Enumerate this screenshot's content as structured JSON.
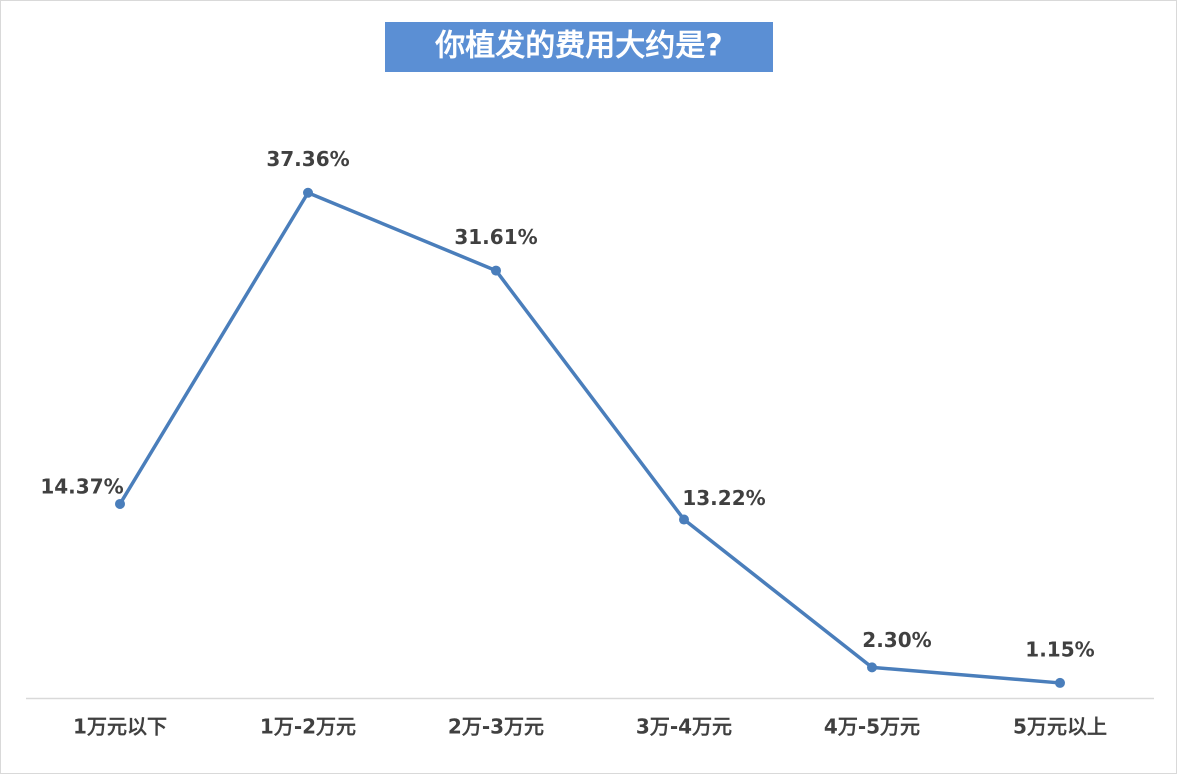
{
  "chart_data": {
    "type": "line",
    "title": "你植发的费用大约是?",
    "categories": [
      "1万元以下",
      "1万-2万元",
      "2万-3万元",
      "3万-4万元",
      "4万-5万元",
      "5万元以上"
    ],
    "values": [
      14.37,
      37.36,
      31.61,
      13.22,
      2.3,
      1.15
    ],
    "value_labels": [
      "14.37%",
      "37.36%",
      "31.61%",
      "13.22%",
      "2.30%",
      "1.15%"
    ],
    "color": "#4a7ebb",
    "ylim": [
      0,
      40
    ]
  }
}
